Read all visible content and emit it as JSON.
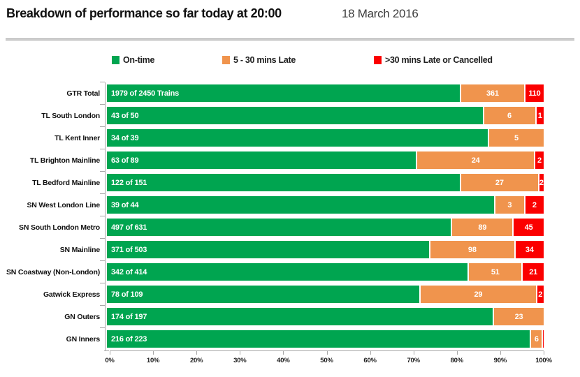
{
  "header": {
    "title": "Breakdown of performance so far today at 20:00",
    "date": "18 March 2016"
  },
  "legend": [
    {
      "label": "On-time",
      "color": "#00A550"
    },
    {
      "label": "5 - 30 mins Late",
      "color": "#F0944D"
    },
    {
      "label": ">30 mins Late or Cancelled",
      "color": "#FB0000"
    }
  ],
  "chart_data": {
    "type": "bar",
    "orientation": "horizontal",
    "stacked": true,
    "units": "trains",
    "categories": [
      "GTR Total",
      "TL South London",
      "TL Kent Inner",
      "TL Brighton Mainline",
      "TL Bedford Mainline",
      "SN West London Line",
      "SN South London Metro",
      "SN Mainline",
      "SN Coastway (Non-London)",
      "Gatwick Express",
      "GN Outers",
      "GN Inners"
    ],
    "series": [
      {
        "key": "ontime",
        "name": "On-time",
        "color": "#00A550",
        "values": [
          1979,
          43,
          34,
          63,
          122,
          39,
          497,
          371,
          342,
          78,
          174,
          216
        ]
      },
      {
        "key": "late",
        "name": "5 - 30 mins Late",
        "color": "#F0944D",
        "values": [
          361,
          6,
          5,
          24,
          27,
          3,
          89,
          98,
          51,
          29,
          23,
          6
        ]
      },
      {
        "key": "cancelled",
        "name": ">30 mins Late or Cancelled",
        "color": "#FB0000",
        "values": [
          110,
          1,
          0,
          2,
          2,
          2,
          45,
          34,
          21,
          2,
          0,
          1
        ]
      }
    ],
    "totals": [
      2450,
      50,
      39,
      89,
      151,
      44,
      631,
      503,
      414,
      109,
      197,
      223
    ],
    "bar_labels": [
      "1979 of 2450 Trains",
      "43 of 50",
      "34 of 39",
      "63 of 89",
      "122 of 151",
      "39 of 44",
      "497 of 631",
      "371 of 503",
      "342 of 414",
      "78 of 109",
      "174 of 197",
      "216 of 223"
    ],
    "x_axis": {
      "min": 0,
      "max": 100,
      "ticks": [
        "0%",
        "10%",
        "20%",
        "30%",
        "40%",
        "50%",
        "60%",
        "70%",
        "80%",
        "90%",
        "100%"
      ]
    },
    "axis_color": "#A6A6A6"
  }
}
